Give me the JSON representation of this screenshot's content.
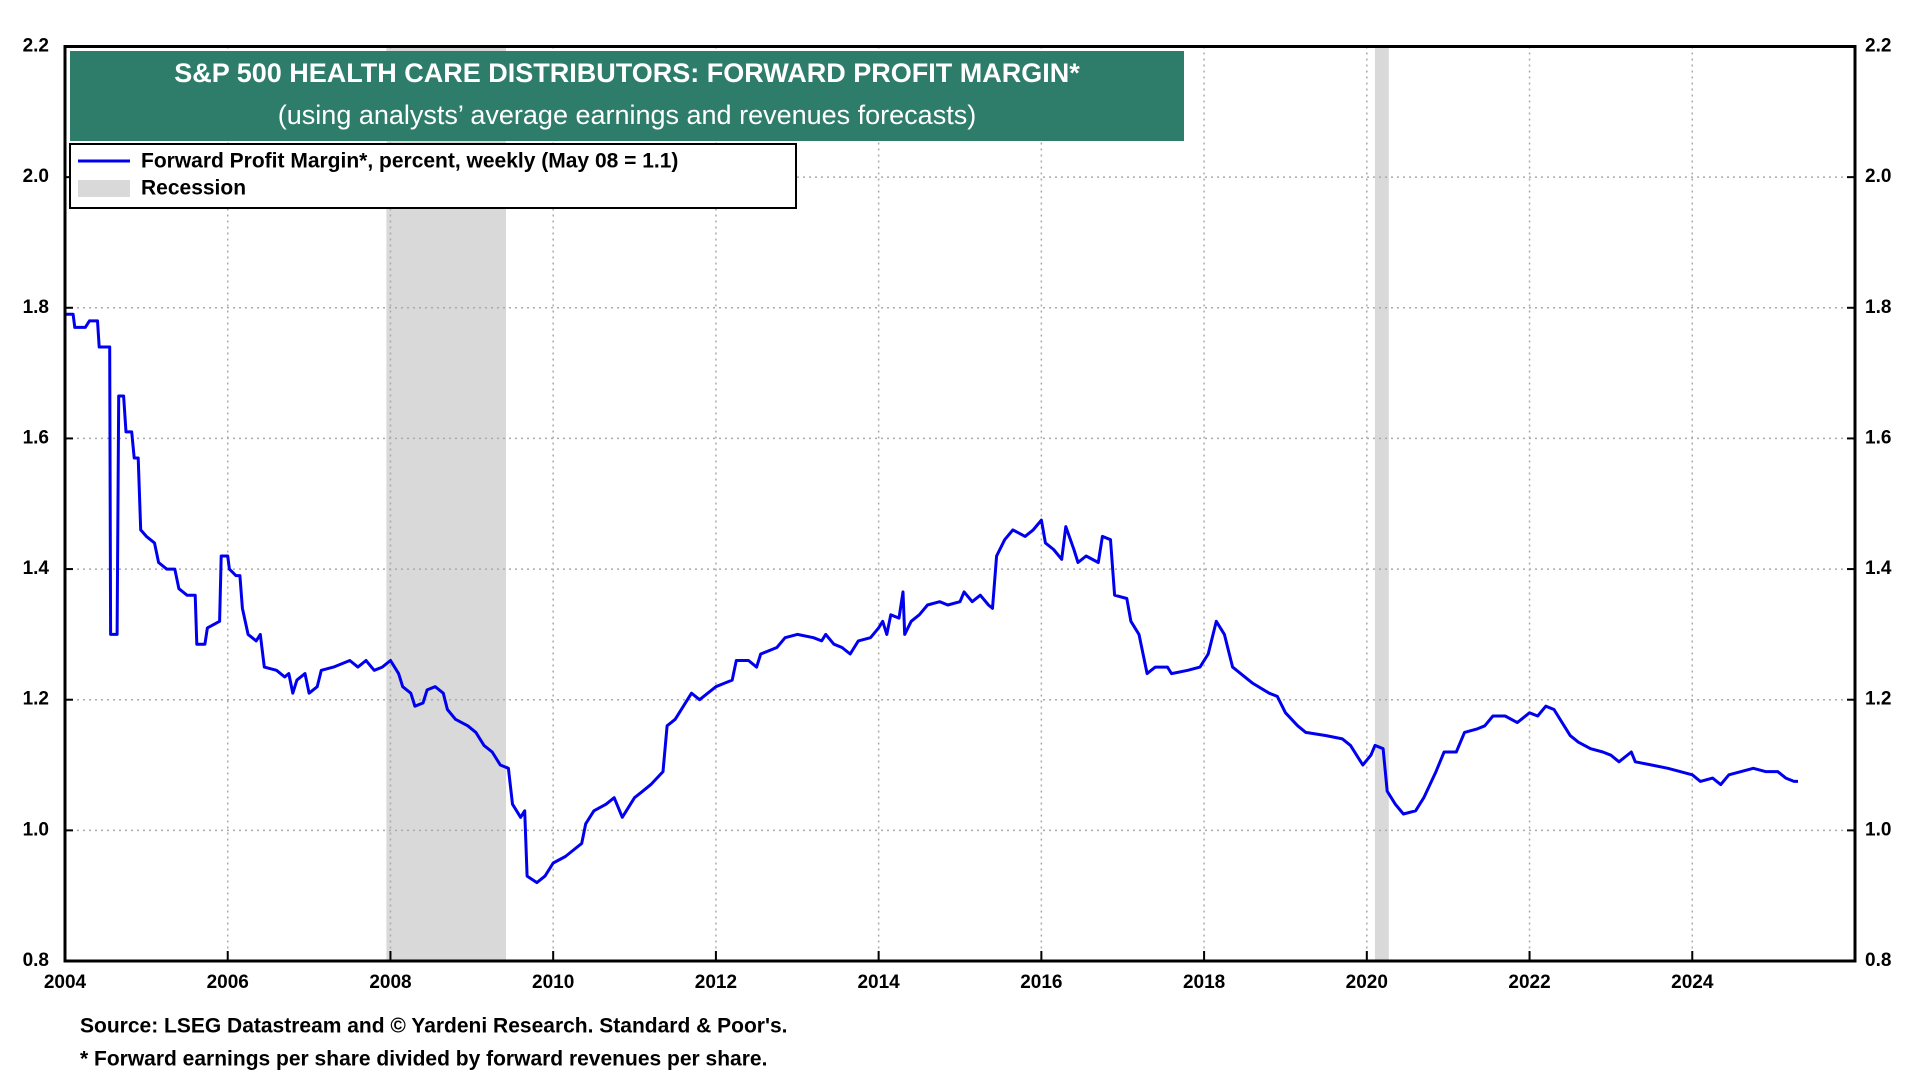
{
  "chart_data": {
    "type": "line",
    "title": "S&P 500 HEALTH CARE DISTRIBUTORS: FORWARD PROFIT MARGIN*",
    "subtitle": "(using analysts’ average earnings and revenues forecasts)",
    "source": "Source: LSEG Datastream and © Yardeni Research. Standard & Poor's.",
    "footnote": "* Forward earnings per share divided by forward revenues per share.",
    "recession_name": "Recession",
    "recession_color": "#d9d9d9",
    "recessions": [
      {
        "start": 2007.95,
        "end": 2009.42
      },
      {
        "start": 2020.1,
        "end": 2020.27
      }
    ],
    "xlim": [
      2004,
      2026
    ],
    "xticks": [
      2004,
      2006,
      2008,
      2010,
      2012,
      2014,
      2016,
      2018,
      2020,
      2022,
      2024
    ],
    "ylim": [
      0.8,
      2.2
    ],
    "yticks": [
      0.8,
      {
        "value": 1,
        "label": "1.0"
      },
      1.2,
      1.4,
      1.6,
      1.8,
      {
        "value": 2,
        "label": "2.0"
      },
      2.2
    ],
    "grid": true,
    "legend": "upper left",
    "x": [
      2004.0,
      2004.1,
      2004.12,
      2004.25,
      2004.3,
      2004.4,
      2004.42,
      2004.55,
      2004.56,
      2004.64,
      2004.66,
      2004.72,
      2004.75,
      2004.82,
      2004.85,
      2004.9,
      2004.93,
      2005.0,
      2005.1,
      2005.15,
      2005.25,
      2005.35,
      2005.4,
      2005.5,
      2005.6,
      2005.62,
      2005.72,
      2005.75,
      2005.9,
      2005.92,
      2006.0,
      2006.02,
      2006.1,
      2006.15,
      2006.18,
      2006.25,
      2006.35,
      2006.4,
      2006.45,
      2006.6,
      2006.7,
      2006.75,
      2006.8,
      2006.85,
      2006.95,
      2007.0,
      2007.1,
      2007.15,
      2007.3,
      2007.5,
      2007.6,
      2007.7,
      2007.8,
      2007.9,
      2008.0,
      2008.1,
      2008.15,
      2008.25,
      2008.3,
      2008.4,
      2008.45,
      2008.55,
      2008.65,
      2008.7,
      2008.8,
      2008.95,
      2009.05,
      2009.15,
      2009.25,
      2009.35,
      2009.45,
      2009.5,
      2009.6,
      2009.65,
      2009.68,
      2009.8,
      2009.9,
      2010.0,
      2010.15,
      2010.25,
      2010.35,
      2010.4,
      2010.5,
      2010.65,
      2010.75,
      2010.85,
      2011.0,
      2011.1,
      2011.2,
      2011.35,
      2011.4,
      2011.5,
      2011.6,
      2011.7,
      2011.8,
      2012.0,
      2012.1,
      2012.2,
      2012.25,
      2012.4,
      2012.5,
      2012.55,
      2012.75,
      2012.85,
      2013.0,
      2013.2,
      2013.3,
      2013.35,
      2013.45,
      2013.55,
      2013.65,
      2013.75,
      2013.9,
      2014.0,
      2014.05,
      2014.1,
      2014.15,
      2014.25,
      2014.3,
      2014.32,
      2014.4,
      2014.5,
      2014.6,
      2014.75,
      2014.85,
      2015.0,
      2015.05,
      2015.15,
      2015.25,
      2015.35,
      2015.4,
      2015.45,
      2015.55,
      2015.65,
      2015.8,
      2015.9,
      2016.0,
      2016.05,
      2016.15,
      2016.25,
      2016.3,
      2016.4,
      2016.45,
      2016.55,
      2016.7,
      2016.75,
      2016.85,
      2016.9,
      2017.05,
      2017.1,
      2017.2,
      2017.3,
      2017.4,
      2017.55,
      2017.6,
      2017.8,
      2017.95,
      2018.05,
      2018.15,
      2018.25,
      2018.35,
      2018.5,
      2018.6,
      2018.8,
      2018.9,
      2019.0,
      2019.15,
      2019.25,
      2019.5,
      2019.7,
      2019.8,
      2019.95,
      2020.05,
      2020.1,
      2020.2,
      2020.25,
      2020.35,
      2020.45,
      2020.6,
      2020.7,
      2020.85,
      2020.95,
      2021.1,
      2021.2,
      2021.35,
      2021.45,
      2021.55,
      2021.7,
      2021.85,
      2022.0,
      2022.1,
      2022.2,
      2022.3,
      2022.4,
      2022.5,
      2022.6,
      2022.75,
      2022.9,
      2023.0,
      2023.1,
      2023.25,
      2023.3,
      2023.5,
      2023.7,
      2023.85,
      2024.0,
      2024.1,
      2024.25,
      2024.35,
      2024.45,
      2024.6,
      2024.75,
      2024.9,
      2025.05,
      2025.15,
      2025.25,
      2025.3
    ],
    "series": [
      {
        "name": "Forward Profit Margin*, percent, weekly (May 08 = 1.1)",
        "color": "#0000ee",
        "values": [
          1.79,
          1.79,
          1.77,
          1.77,
          1.78,
          1.78,
          1.74,
          1.74,
          1.3,
          1.3,
          1.665,
          1.665,
          1.61,
          1.61,
          1.57,
          1.57,
          1.46,
          1.45,
          1.44,
          1.41,
          1.4,
          1.4,
          1.37,
          1.36,
          1.36,
          1.285,
          1.285,
          1.31,
          1.32,
          1.42,
          1.42,
          1.4,
          1.39,
          1.39,
          1.34,
          1.3,
          1.29,
          1.3,
          1.25,
          1.245,
          1.235,
          1.24,
          1.21,
          1.23,
          1.24,
          1.21,
          1.22,
          1.245,
          1.25,
          1.26,
          1.25,
          1.26,
          1.245,
          1.25,
          1.26,
          1.24,
          1.22,
          1.21,
          1.19,
          1.195,
          1.215,
          1.22,
          1.21,
          1.185,
          1.17,
          1.16,
          1.15,
          1.13,
          1.12,
          1.1,
          1.095,
          1.04,
          1.02,
          1.03,
          0.93,
          0.92,
          0.93,
          0.95,
          0.96,
          0.97,
          0.98,
          1.01,
          1.03,
          1.04,
          1.05,
          1.02,
          1.05,
          1.06,
          1.07,
          1.09,
          1.16,
          1.17,
          1.19,
          1.21,
          1.2,
          1.22,
          1.225,
          1.23,
          1.26,
          1.26,
          1.25,
          1.27,
          1.28,
          1.295,
          1.3,
          1.295,
          1.29,
          1.3,
          1.285,
          1.28,
          1.27,
          1.29,
          1.295,
          1.31,
          1.32,
          1.3,
          1.33,
          1.325,
          1.365,
          1.3,
          1.32,
          1.33,
          1.345,
          1.35,
          1.345,
          1.35,
          1.365,
          1.35,
          1.36,
          1.345,
          1.34,
          1.42,
          1.445,
          1.46,
          1.45,
          1.46,
          1.475,
          1.44,
          1.43,
          1.415,
          1.465,
          1.43,
          1.41,
          1.42,
          1.41,
          1.45,
          1.445,
          1.36,
          1.355,
          1.32,
          1.3,
          1.24,
          1.25,
          1.25,
          1.24,
          1.245,
          1.25,
          1.27,
          1.32,
          1.3,
          1.25,
          1.235,
          1.225,
          1.21,
          1.205,
          1.18,
          1.16,
          1.15,
          1.145,
          1.14,
          1.13,
          1.1,
          1.115,
          1.13,
          1.125,
          1.06,
          1.04,
          1.025,
          1.03,
          1.05,
          1.09,
          1.12,
          1.12,
          1.15,
          1.155,
          1.16,
          1.175,
          1.175,
          1.165,
          1.18,
          1.175,
          1.19,
          1.185,
          1.165,
          1.145,
          1.135,
          1.125,
          1.12,
          1.115,
          1.105,
          1.12,
          1.105,
          1.1,
          1.095,
          1.09,
          1.085,
          1.075,
          1.08,
          1.07,
          1.085,
          1.09,
          1.095,
          1.09,
          1.09,
          1.08,
          1.075,
          1.075
        ]
      }
    ]
  }
}
